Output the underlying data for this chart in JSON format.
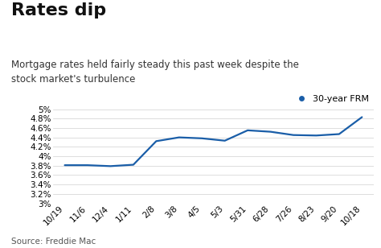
{
  "title": "Rates dip",
  "subtitle": "Mortgage rates held fairly steady this past week despite the\nstock market's turbulence",
  "source": "Source: Freddie Mac",
  "legend_label": "30-year FRM",
  "line_color": "#1a5ea8",
  "marker_color": "#1a5ea8",
  "background_color": "#ffffff",
  "x_labels": [
    "10/19",
    "11/6",
    "12/4",
    "1/11",
    "2/8",
    "3/8",
    "4/5",
    "5/3",
    "5/31",
    "6/28",
    "7/26",
    "8/23",
    "9/20",
    "10/18"
  ],
  "y_values": [
    3.81,
    3.81,
    3.79,
    3.82,
    4.32,
    4.4,
    4.38,
    4.33,
    4.55,
    4.52,
    4.45,
    4.44,
    4.47,
    4.83
  ],
  "ylim": [
    3.0,
    5.0
  ],
  "yticks": [
    3.0,
    3.2,
    3.4,
    3.6,
    3.8,
    4.0,
    4.2,
    4.4,
    4.6,
    4.8,
    5.0
  ],
  "title_fontsize": 16,
  "subtitle_fontsize": 8.5,
  "axis_fontsize": 7.5,
  "source_fontsize": 7.5,
  "legend_fontsize": 8
}
